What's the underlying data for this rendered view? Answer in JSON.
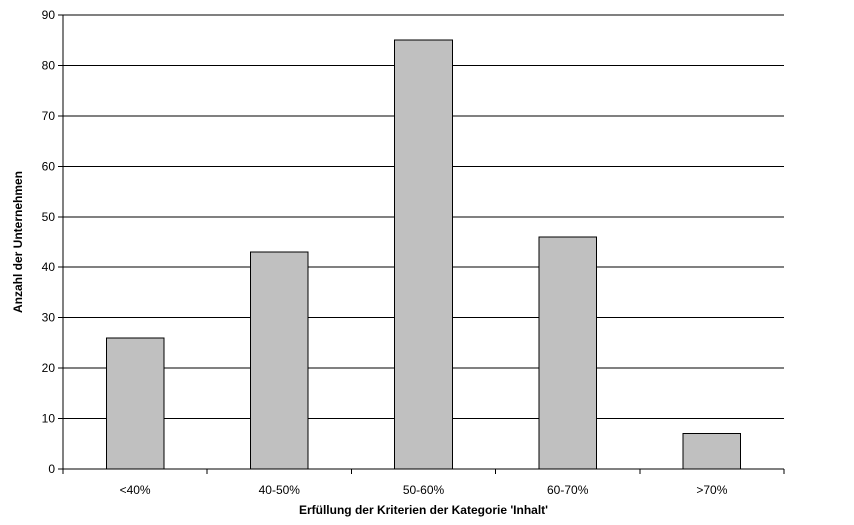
{
  "chart_data": {
    "type": "bar",
    "title": "",
    "xlabel": "Erfüllung der Kriterien der Kategorie 'Inhalt'",
    "ylabel": "Anzahl der Unternehmen",
    "categories": [
      "<40%",
      "40-50%",
      "50-60%",
      "60-70%",
      ">70%"
    ],
    "values": [
      26,
      43,
      85,
      46,
      7
    ],
    "ylim": [
      0,
      90
    ],
    "yticks": [
      0,
      10,
      20,
      30,
      40,
      50,
      60,
      70,
      80,
      90
    ],
    "grid": true,
    "legend": "none",
    "colors": {
      "bar_fill": "#c0c0c0",
      "bar_stroke": "#000000",
      "grid": "#000000",
      "axis": "#000000"
    }
  }
}
